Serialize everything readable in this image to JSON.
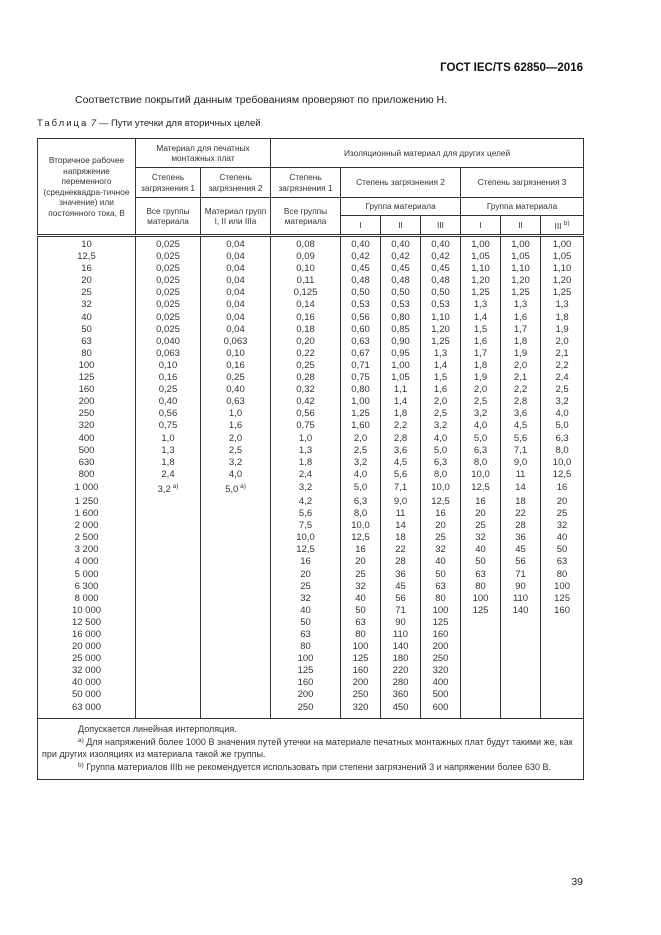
{
  "header": {
    "doc_code": "ГОСТ IEC/TS 62850—2016"
  },
  "intro": "Соответствие покрытий данным требованиям проверяют по приложению Н.",
  "caption": {
    "label": "Таблица",
    "number": "7",
    "title": "— Пути утечки для вторичных целей"
  },
  "table": {
    "h_voltage": "Вторичное рабочее напряжение переменного (среднеквадра-тичное значение) или постоянного тока, В",
    "h_pcb": "Материал для печатных монтажных плат",
    "h_other": "Изоляционный материал для других целей",
    "h_pd1a": "Степень загрязнения 1",
    "h_pd2a": "Степень загрязнения 2",
    "h_pd1b": "Степень загрязнения 1",
    "h_pd2b": "Степень загрязнения 2",
    "h_pd3b": "Степень загрязнения 3",
    "h_all1": "Все группы материала",
    "h_groups": "Материал групп I, II или IIIa",
    "h_all2": "Все группы материала",
    "h_group2": "Группа материала",
    "h_group3": "Группа материала",
    "g_I_2": "I",
    "g_II_2": "II",
    "g_III_2": "III",
    "g_I_3": "I",
    "g_II_3": "II",
    "g_III_3": "III",
    "g_III_3_sup": "b)",
    "rows": [
      [
        "10",
        "0,025",
        "0,04",
        "0,08",
        "0,40",
        "0,40",
        "0,40",
        "1,00",
        "1,00",
        "1,00"
      ],
      [
        "12,5",
        "0,025",
        "0,04",
        "0,09",
        "0,42",
        "0,42",
        "0,42",
        "1,05",
        "1,05",
        "1,05"
      ],
      [
        "16",
        "0,025",
        "0,04",
        "0,10",
        "0,45",
        "0,45",
        "0,45",
        "1,10",
        "1,10",
        "1,10"
      ],
      [
        "20",
        "0,025",
        "0,04",
        "0,11",
        "0,48",
        "0,48",
        "0,48",
        "1,20",
        "1,20",
        "1,20"
      ],
      [
        "25",
        "0,025",
        "0,04",
        "0,125",
        "0,50",
        "0,50",
        "0,50",
        "1,25",
        "1,25",
        "1,25"
      ],
      [
        "32",
        "0,025",
        "0,04",
        "0,14",
        "0,53",
        "0,53",
        "0,53",
        "1,3",
        "1,3",
        "1,3"
      ],
      [
        "40",
        "0,025",
        "0,04",
        "0,16",
        "0,56",
        "0,80",
        "1,10",
        "1,4",
        "1,6",
        "1,8"
      ],
      [
        "50",
        "0,025",
        "0,04",
        "0,18",
        "0,60",
        "0,85",
        "1,20",
        "1,5",
        "1,7",
        "1,9"
      ],
      [
        "63",
        "0,040",
        "0,063",
        "0,20",
        "0,63",
        "0,90",
        "1,25",
        "1,6",
        "1,8",
        "2,0"
      ],
      [
        "80",
        "0,063",
        "0,10",
        "0,22",
        "0,67",
        "0,95",
        "1,3",
        "1,7",
        "1,9",
        "2,1"
      ],
      [
        "100",
        "0,10",
        "0,16",
        "0,25",
        "0,71",
        "1,00",
        "1,4",
        "1,8",
        "2,0",
        "2,2"
      ],
      [
        "125",
        "0,16",
        "0,25",
        "0,28",
        "0,75",
        "1,05",
        "1,5",
        "1,9",
        "2,1",
        "2,4"
      ],
      [
        "160",
        "0,25",
        "0,40",
        "0,32",
        "0,80",
        "1,1",
        "1,6",
        "2,0",
        "2,2",
        "2,5"
      ],
      [
        "200",
        "0,40",
        "0,63",
        "0,42",
        "1,00",
        "1,4",
        "2,0",
        "2,5",
        "2,8",
        "3,2"
      ],
      [
        "250",
        "0,56",
        "1,0",
        "0,56",
        "1,25",
        "1,8",
        "2,5",
        "3,2",
        "3,6",
        "4,0"
      ],
      [
        "320",
        "0,75",
        "1,6",
        "0,75",
        "1,60",
        "2,2",
        "3,2",
        "4,0",
        "4,5",
        "5,0"
      ],
      [
        "400",
        "1,0",
        "2,0",
        "1,0",
        "2,0",
        "2,8",
        "4,0",
        "5,0",
        "5,6",
        "6,3"
      ],
      [
        "500",
        "1,3",
        "2,5",
        "1,3",
        "2,5",
        "3,6",
        "5,0",
        "6,3",
        "7,1",
        "8,0"
      ],
      [
        "630",
        "1,8",
        "3,2",
        "1,8",
        "3,2",
        "4,5",
        "6,3",
        "8,0",
        "9,0",
        "10,0"
      ],
      [
        "800",
        "2,4",
        "4,0",
        "2,4",
        "4,0",
        "5,6",
        "8,0",
        "10,0",
        "11",
        "12,5"
      ],
      [
        "1 000",
        "3,2|a)",
        "5,0|a)",
        "3,2",
        "5,0",
        "7,1",
        "10,0",
        "12,5",
        "14",
        "16"
      ],
      [
        "1 250",
        "",
        "",
        "4,2",
        "6,3",
        "9,0",
        "12,5",
        "16",
        "18",
        "20"
      ],
      [
        "1 600",
        "",
        "",
        "5,6",
        "8,0",
        "11",
        "16",
        "20",
        "22",
        "25"
      ],
      [
        "2 000",
        "",
        "",
        "7,5",
        "10,0",
        "14",
        "20",
        "25",
        "28",
        "32"
      ],
      [
        "2 500",
        "",
        "",
        "10,0",
        "12,5",
        "18",
        "25",
        "32",
        "36",
        "40"
      ],
      [
        "3 200",
        "",
        "",
        "12,5",
        "16",
        "22",
        "32",
        "40",
        "45",
        "50"
      ],
      [
        "4 000",
        "",
        "",
        "16",
        "20",
        "28",
        "40",
        "50",
        "56",
        "63"
      ],
      [
        "5 000",
        "",
        "",
        "20",
        "25",
        "36",
        "50",
        "63",
        "71",
        "80"
      ],
      [
        "6 300",
        "",
        "",
        "25",
        "32",
        "45",
        "63",
        "80",
        "90",
        "100"
      ],
      [
        "8 000",
        "",
        "",
        "32",
        "40",
        "56",
        "80",
        "100",
        "110",
        "125"
      ],
      [
        "10 000",
        "",
        "",
        "40",
        "50",
        "71",
        "100",
        "125",
        "140",
        "160"
      ],
      [
        "12 500",
        "",
        "",
        "50",
        "63",
        "90",
        "125",
        "",
        "",
        ""
      ],
      [
        "16 000",
        "",
        "",
        "63",
        "80",
        "110",
        "160",
        "",
        "",
        ""
      ],
      [
        "20 000",
        "",
        "",
        "80",
        "100",
        "140",
        "200",
        "",
        "",
        ""
      ],
      [
        "25 000",
        "",
        "",
        "100",
        "125",
        "180",
        "250",
        "",
        "",
        ""
      ],
      [
        "32 000",
        "",
        "",
        "125",
        "160",
        "220",
        "320",
        "",
        "",
        ""
      ],
      [
        "40 000",
        "",
        "",
        "160",
        "200",
        "280",
        "400",
        "",
        "",
        ""
      ],
      [
        "50 000",
        "",
        "",
        "200",
        "250",
        "360",
        "500",
        "",
        "",
        ""
      ],
      [
        "63 000",
        "",
        "",
        "250",
        "320",
        "450",
        "600",
        "",
        "",
        ""
      ]
    ],
    "notes": {
      "interp": "Допускается линейная интерполяция.",
      "a_mark": "a)",
      "a": "Для напряжений более 1000 В значения путей утечки на материале печатных монтажных плат будут такими же, как при других изоляциях из материала такой же группы.",
      "b_mark": "b)",
      "b": "Группа материалов IIIb не рекомендуется использовать при степени загрязнений 3 и напряжении более 630 В."
    }
  },
  "page_number": "39"
}
